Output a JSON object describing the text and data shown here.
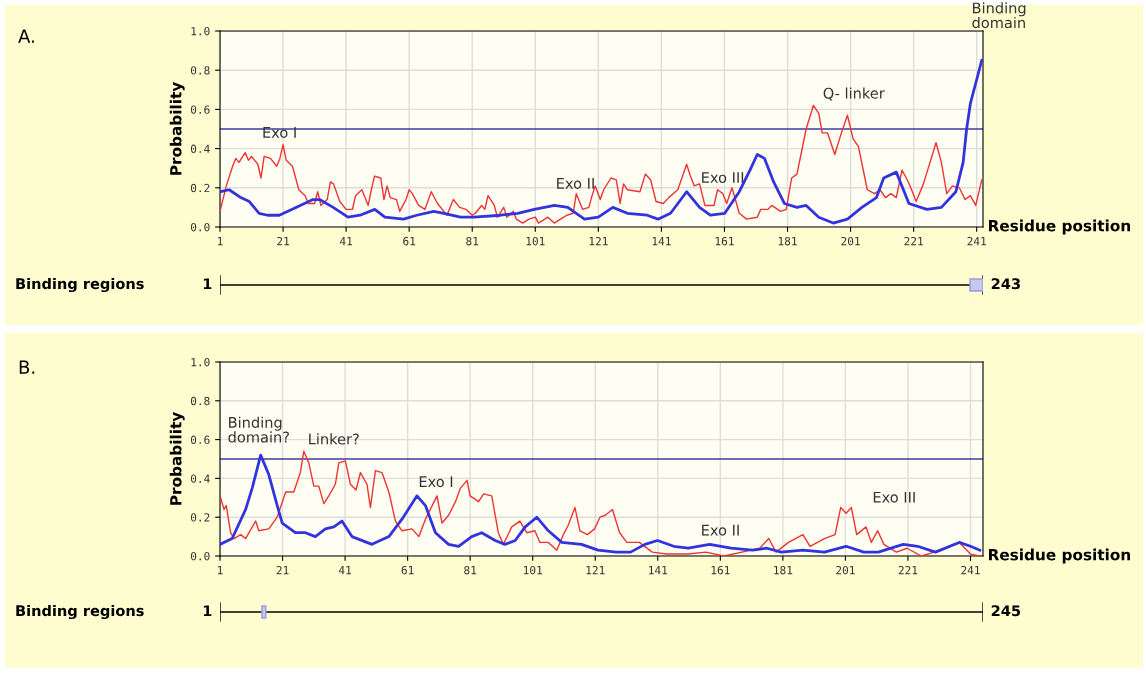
{
  "chart_data": [
    {
      "type": "line",
      "ylabel": "Probability",
      "xlabel": "Residue position",
      "xlim": [
        1,
        243
      ],
      "ylim": [
        0,
        1.0
      ],
      "xticks": [
        1,
        21,
        41,
        61,
        81,
        101,
        121,
        141,
        161,
        181,
        201,
        221,
        241
      ],
      "yticks": [
        {
          "value": 0,
          "label": "0.0"
        },
        {
          "value": 0.2,
          "label": "0.2"
        },
        {
          "value": 0.4,
          "label": "0.4"
        },
        {
          "value": 0.6,
          "label": "0.6"
        },
        {
          "value": 0.8,
          "label": "0.8"
        },
        {
          "value": 1.0,
          "label": "1.0"
        }
      ],
      "grid": true,
      "legend": false,
      "series": [
        {
          "color": "#ee3333",
          "x": [
            1,
            3,
            5,
            6,
            7,
            9,
            10,
            11,
            13,
            14,
            15,
            17,
            19,
            20,
            21,
            22,
            24,
            26,
            28,
            29,
            31,
            32,
            33,
            35,
            36,
            37,
            39,
            41,
            43,
            44,
            46,
            47,
            48,
            49,
            50,
            52,
            53,
            54,
            55,
            57,
            58,
            60,
            61,
            62,
            64,
            66,
            68,
            70,
            72,
            73,
            75,
            77,
            79,
            81,
            82,
            84,
            85,
            86,
            88,
            89,
            91,
            92,
            94,
            95,
            97,
            99,
            101,
            102,
            104,
            105,
            107,
            109,
            111,
            113,
            114,
            116,
            118,
            119,
            120,
            121.6,
            122.7,
            125,
            126.7,
            127.9,
            129,
            130.2,
            134.2,
            135.9,
            137.6,
            139.3,
            141.6,
            143.3,
            146.2,
            149,
            150.2,
            151.4,
            153.1,
            154.8,
            157.7,
            158.8,
            160.5,
            161.7,
            163.4,
            165.7,
            168,
            171.4,
            172.5,
            174.8,
            176,
            178.8,
            180.6,
            182.3,
            184,
            186.9,
            189.2,
            190.9,
            192,
            193.7,
            196,
            197.7,
            200,
            201.8,
            203.5,
            206.3,
            208.6,
            210.3,
            212.1,
            213.8,
            215.5,
            217.3,
            219,
            220.1,
            221.8,
            224.1,
            228.1,
            229.8,
            231.5,
            233.3,
            235.5,
            237.3,
            239,
            240.7,
            242.6
          ],
          "values": [
            0.08,
            0.21,
            0.31,
            0.35,
            0.33,
            0.38,
            0.34,
            0.36,
            0.32,
            0.25,
            0.36,
            0.35,
            0.31,
            0.35,
            0.42,
            0.34,
            0.31,
            0.19,
            0.16,
            0.12,
            0.12,
            0.18,
            0.11,
            0.14,
            0.23,
            0.22,
            0.13,
            0.09,
            0.09,
            0.16,
            0.19,
            0.15,
            0.11,
            0.19,
            0.26,
            0.25,
            0.14,
            0.21,
            0.15,
            0.14,
            0.08,
            0.14,
            0.19,
            0.17,
            0.11,
            0.09,
            0.18,
            0.12,
            0.08,
            0.06,
            0.14,
            0.1,
            0.09,
            0.06,
            0.07,
            0.11,
            0.09,
            0.16,
            0.11,
            0.05,
            0.1,
            0.05,
            0.08,
            0.04,
            0.02,
            0.04,
            0.05,
            0.02,
            0.04,
            0.05,
            0.02,
            0.04,
            0.06,
            0.07,
            0.17,
            0.09,
            0.1,
            0.16,
            0.21,
            0.14,
            0.19,
            0.25,
            0.24,
            0.12,
            0.22,
            0.19,
            0.18,
            0.27,
            0.24,
            0.13,
            0.12,
            0.15,
            0.19,
            0.32,
            0.26,
            0.21,
            0.22,
            0.11,
            0.11,
            0.19,
            0.17,
            0.12,
            0.2,
            0.07,
            0.04,
            0.05,
            0.09,
            0.09,
            0.11,
            0.08,
            0.09,
            0.25,
            0.27,
            0.5,
            0.62,
            0.58,
            0.48,
            0.48,
            0.37,
            0.46,
            0.57,
            0.45,
            0.41,
            0.19,
            0.17,
            0.19,
            0.15,
            0.17,
            0.15,
            0.29,
            0.24,
            0.2,
            0.13,
            0.22,
            0.43,
            0.33,
            0.17,
            0.21,
            0.2,
            0.14,
            0.16,
            0.11,
            0.24
          ]
        },
        {
          "color": "#3333dd",
          "x": [
            1,
            3.9,
            7.6,
            10.3,
            13.4,
            16.1,
            19.8,
            25.1,
            30.5,
            32.6,
            36.9,
            41.6,
            45.4,
            50.1,
            53.3,
            59.2,
            63.4,
            68.8,
            72,
            77.3,
            81.5,
            90,
            95.4,
            100.7,
            107.1,
            111.3,
            116.6,
            121,
            125.6,
            130.2,
            136.5,
            139.9,
            143.9,
            149,
            153.1,
            156.5,
            161.1,
            165.7,
            169.1,
            171.4,
            173.7,
            176.6,
            180,
            184,
            186.9,
            190.9,
            195.5,
            200,
            204.6,
            209.2,
            211.5,
            215.5,
            219.5,
            225.2,
            229.8,
            234.4,
            236.7,
            237.8,
            239,
            242.6
          ],
          "values": [
            0.18,
            0.19,
            0.15,
            0.13,
            0.07,
            0.06,
            0.06,
            0.1,
            0.14,
            0.14,
            0.1,
            0.05,
            0.06,
            0.09,
            0.05,
            0.04,
            0.06,
            0.08,
            0.07,
            0.05,
            0.05,
            0.06,
            0.07,
            0.09,
            0.11,
            0.1,
            0.04,
            0.05,
            0.1,
            0.07,
            0.06,
            0.04,
            0.07,
            0.18,
            0.1,
            0.06,
            0.07,
            0.18,
            0.29,
            0.37,
            0.35,
            0.23,
            0.12,
            0.1,
            0.11,
            0.05,
            0.02,
            0.04,
            0.1,
            0.15,
            0.25,
            0.28,
            0.12,
            0.09,
            0.1,
            0.18,
            0.33,
            0.5,
            0.63,
            0.85
          ]
        }
      ],
      "ref_lines": [
        {
          "axis": "y",
          "value": 0.5,
          "color": "#3c3ca0"
        }
      ],
      "annotations": [
        "A.",
        "Exo I",
        "Exo II",
        "Exo III",
        "Q- linker",
        "Binding\ndomain"
      ]
    },
    {
      "type": "other",
      "title": "Binding regions",
      "annotations": [
        "1",
        "243"
      ]
    },
    {
      "type": "line",
      "ylabel": "Probability",
      "xlabel": "Residue position",
      "xlim": [
        1,
        245
      ],
      "ylim": [
        0,
        1.0
      ],
      "xticks": [
        1,
        21,
        41,
        61,
        81,
        101,
        121,
        141,
        161,
        181,
        201,
        221,
        241
      ],
      "yticks": [
        {
          "value": 0,
          "label": "0.0"
        },
        {
          "value": 0.2,
          "label": "0.2"
        },
        {
          "value": 0.4,
          "label": "0.4"
        },
        {
          "value": 0.6,
          "label": "0.6"
        },
        {
          "value": 0.8,
          "label": "0.8"
        },
        {
          "value": 1.0,
          "label": "1.0"
        }
      ],
      "grid": true,
      "legend": false,
      "series": [
        {
          "color": "#ee3333",
          "x": [
            1,
            2.3,
            3,
            4.4,
            5.5,
            7.6,
            9.2,
            12.4,
            13.4,
            16.6,
            19.3,
            22,
            24.6,
            26.7,
            27.8,
            29.4,
            31,
            32.6,
            34.2,
            35.8,
            37.9,
            39,
            41.1,
            42.7,
            44.5,
            45.9,
            48,
            49.1,
            50.7,
            52.8,
            55,
            57.1,
            59.2,
            62.4,
            64.6,
            66.7,
            70.4,
            72,
            74.1,
            76.3,
            77.9,
            80,
            81,
            83.7,
            85.3,
            87.9,
            90,
            91.6,
            94.3,
            96.9,
            99.1,
            101.7,
            103.3,
            106,
            108.7,
            110.8,
            112.4,
            114.5,
            116.1,
            118.5,
            120.8,
            122.5,
            124.2,
            126.5,
            128.8,
            131.1,
            135.1,
            139.2,
            143.8,
            150.7,
            156.4,
            162.1,
            167.9,
            173.6,
            176.5,
            178.8,
            182.8,
            187.4,
            189.7,
            194.3,
            197.7,
            199.5,
            201.2,
            202.9,
            204.6,
            207.6,
            209.3,
            211.3,
            213.3,
            217.3,
            220.7,
            225.3,
            229.4,
            234,
            237.4,
            241,
            244
          ],
          "values": [
            0.31,
            0.24,
            0.26,
            0.12,
            0.09,
            0.11,
            0.09,
            0.18,
            0.13,
            0.14,
            0.2,
            0.33,
            0.33,
            0.43,
            0.54,
            0.48,
            0.36,
            0.36,
            0.27,
            0.31,
            0.37,
            0.48,
            0.49,
            0.37,
            0.34,
            0.43,
            0.37,
            0.25,
            0.44,
            0.43,
            0.33,
            0.18,
            0.13,
            0.14,
            0.1,
            0.19,
            0.31,
            0.17,
            0.21,
            0.28,
            0.35,
            0.39,
            0.31,
            0.28,
            0.32,
            0.31,
            0.12,
            0.06,
            0.15,
            0.18,
            0.12,
            0.13,
            0.07,
            0.07,
            0.03,
            0.11,
            0.16,
            0.25,
            0.13,
            0.11,
            0.14,
            0.2,
            0.21,
            0.24,
            0.12,
            0.07,
            0.07,
            0.02,
            0.01,
            0.01,
            0.02,
            0.0,
            0.02,
            0.04,
            0.09,
            0.02,
            0.07,
            0.11,
            0.05,
            0.09,
            0.11,
            0.25,
            0.22,
            0.25,
            0.11,
            0.15,
            0.07,
            0.13,
            0.06,
            0.02,
            0.04,
            0.0,
            0.02,
            0.05,
            0.07,
            0.01,
            0.0
          ]
        },
        {
          "color": "#3333dd",
          "x": [
            1,
            4.9,
            9.2,
            11.3,
            14,
            16.6,
            19.3,
            20.9,
            25.1,
            28.3,
            31.5,
            34.7,
            37.4,
            40,
            43.2,
            49.6,
            55,
            59.2,
            64,
            66.7,
            69.9,
            74.1,
            77.3,
            81.5,
            84.7,
            89,
            92.1,
            95.4,
            98.6,
            102.3,
            106,
            110.3,
            116.6,
            121.9,
            127.7,
            132.3,
            136.9,
            140.9,
            146.1,
            150.7,
            157.6,
            164.4,
            171.3,
            175.9,
            180.5,
            187.4,
            194.3,
            201.2,
            206.9,
            211.5,
            219.5,
            224.1,
            229.8,
            237.4,
            241,
            244
          ],
          "values": [
            0.06,
            0.09,
            0.24,
            0.35,
            0.52,
            0.42,
            0.26,
            0.17,
            0.12,
            0.12,
            0.1,
            0.14,
            0.15,
            0.18,
            0.1,
            0.06,
            0.1,
            0.19,
            0.31,
            0.26,
            0.12,
            0.06,
            0.05,
            0.1,
            0.12,
            0.08,
            0.06,
            0.08,
            0.15,
            0.2,
            0.13,
            0.07,
            0.06,
            0.03,
            0.02,
            0.02,
            0.06,
            0.08,
            0.05,
            0.04,
            0.06,
            0.04,
            0.03,
            0.04,
            0.02,
            0.03,
            0.02,
            0.05,
            0.02,
            0.02,
            0.06,
            0.05,
            0.02,
            0.07,
            0.05,
            0.03
          ]
        }
      ],
      "ref_lines": [
        {
          "axis": "y",
          "value": 0.5,
          "color": "#3c3ca0"
        }
      ],
      "annotations": [
        "B.",
        "Binding\ndomain?",
        "Linker?",
        "Exo I",
        "Exo II",
        "Exo III"
      ]
    },
    {
      "type": "other",
      "title": "Binding regions",
      "annotations": [
        "1",
        "245"
      ]
    }
  ]
}
